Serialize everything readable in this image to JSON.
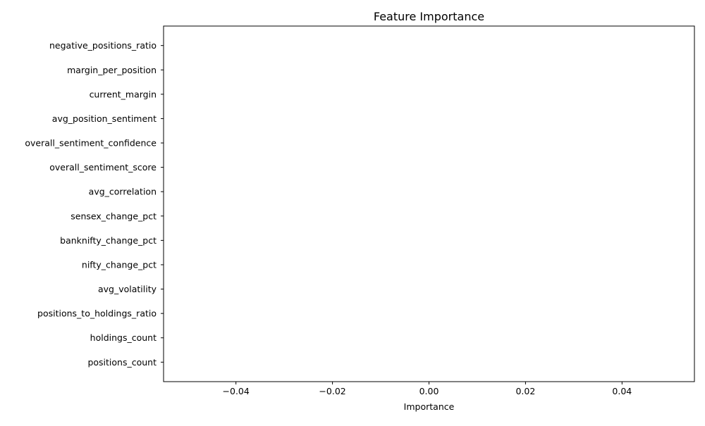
{
  "chart_data": {
    "type": "bar",
    "orientation": "horizontal",
    "title": "Feature Importance",
    "xlabel": "Importance",
    "ylabel": "",
    "categories": [
      "positions_count",
      "holdings_count",
      "positions_to_holdings_ratio",
      "avg_volatility",
      "nifty_change_pct",
      "banknifty_change_pct",
      "sensex_change_pct",
      "avg_correlation",
      "overall_sentiment_score",
      "overall_sentiment_confidence",
      "avg_position_sentiment",
      "current_margin",
      "margin_per_position",
      "negative_positions_ratio"
    ],
    "values": [
      0,
      0,
      0,
      0,
      0,
      0,
      0,
      0,
      0,
      0,
      0,
      0,
      0,
      0
    ],
    "xlim": [
      -0.055,
      0.055
    ],
    "xticks": [
      -0.04,
      -0.02,
      0.0,
      0.02,
      0.04
    ],
    "xtick_labels": [
      "−0.04",
      "−0.02",
      "0.00",
      "0.02",
      "0.04"
    ],
    "grid": false,
    "legend": "none"
  }
}
